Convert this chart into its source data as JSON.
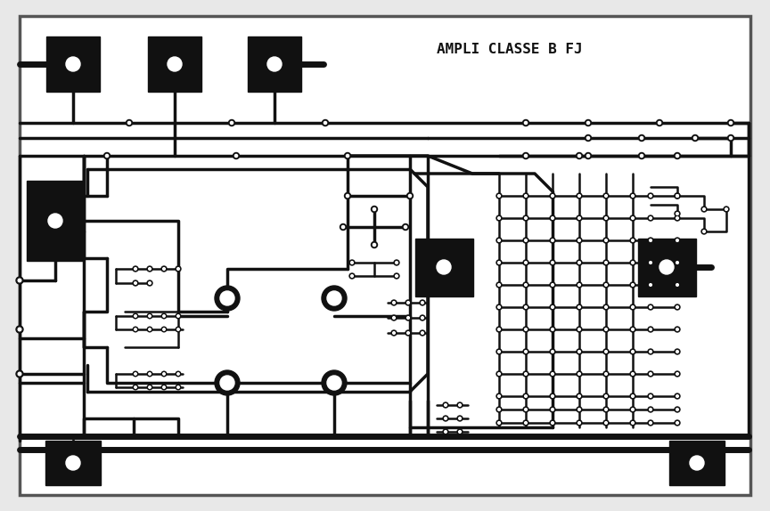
{
  "title": "AMPLI CLASSE B FJ",
  "bg_color": "#e8e8e8",
  "board_bg": "#ffffff",
  "track_color": "#111111",
  "title_fontsize": 11.5,
  "lw_thin": 1.8,
  "lw_med": 2.5,
  "lw_thick": 5.0,
  "lw_border": 2.5
}
